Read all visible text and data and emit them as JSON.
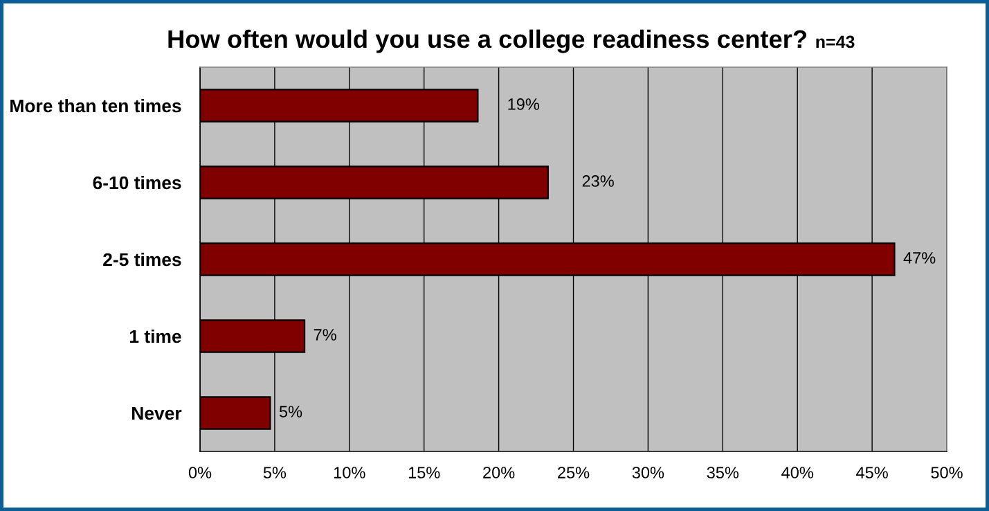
{
  "chart_data": {
    "type": "bar",
    "orientation": "horizontal",
    "title": "How often would you use a college readiness center?",
    "subtitle": "n=43",
    "categories": [
      "More than ten times",
      "6-10 times",
      "2-5 times",
      "1 time",
      "Never"
    ],
    "values": [
      18.6,
      23.3,
      46.5,
      7.0,
      4.7
    ],
    "value_labels": [
      "19%",
      "23%",
      "47%",
      "7%",
      "5%"
    ],
    "color": "#800000",
    "xlim": [
      0,
      50
    ],
    "xticks": [
      {
        "value": 0,
        "label": "0%"
      },
      {
        "value": 5,
        "label": "5%"
      },
      {
        "value": 10,
        "label": "10%"
      },
      {
        "value": 15,
        "label": "15%"
      },
      {
        "value": 20,
        "label": "20%"
      },
      {
        "value": 25,
        "label": "25%"
      },
      {
        "value": 30,
        "label": "30%"
      },
      {
        "value": 35,
        "label": "35%"
      },
      {
        "value": 40,
        "label": "40%"
      },
      {
        "value": 45,
        "label": "45%"
      },
      {
        "value": 50,
        "label": "50%"
      }
    ],
    "grid": "x"
  }
}
